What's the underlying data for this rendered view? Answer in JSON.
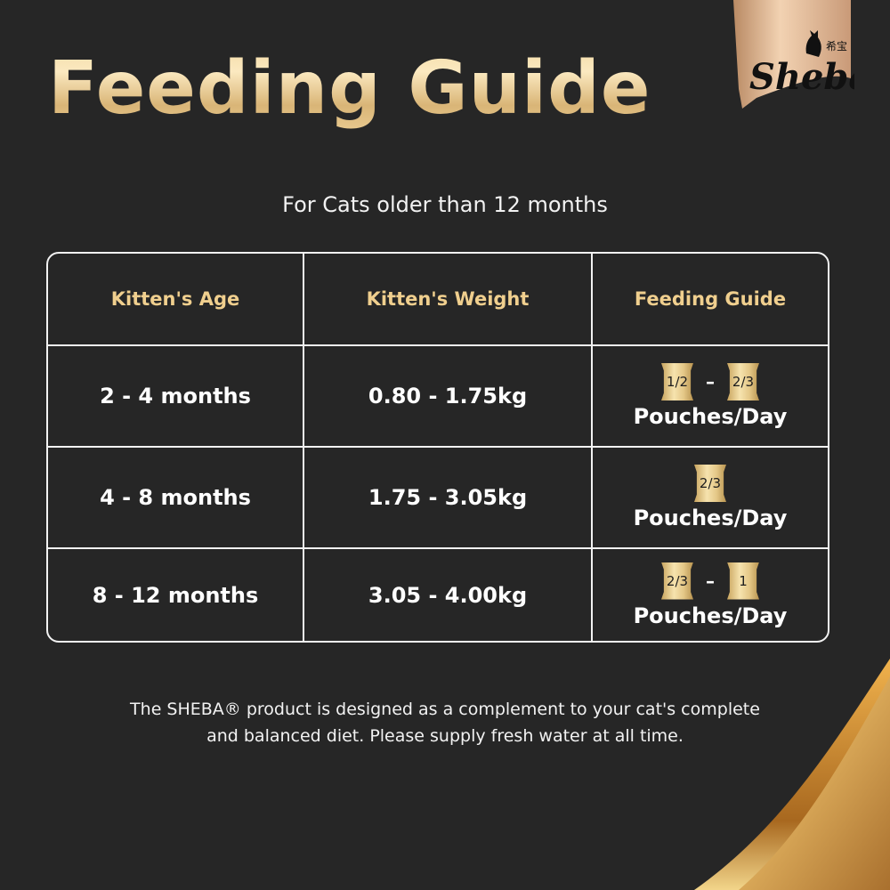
{
  "title": "Feeding Guide",
  "logo": {
    "text": "Sheba",
    "chinese": "希宝"
  },
  "subtitle": "For Cats older than 12 months",
  "table": {
    "headers": [
      "Kitten's Age",
      "Kitten's Weight",
      "Feeding Guide"
    ],
    "rows": [
      {
        "age": "2 - 4 months",
        "weight": "0.80 - 1.75kg",
        "pouches": [
          "1/2",
          "2/3"
        ],
        "unit": "Pouches/Day"
      },
      {
        "age": "4 - 8 months",
        "weight": "1.75 - 3.05kg",
        "pouches": [
          "2/3"
        ],
        "unit": "Pouches/Day"
      },
      {
        "age": "8 - 12 months",
        "weight": "3.05 - 4.00kg",
        "pouches": [
          "2/3",
          "1"
        ],
        "unit": "Pouches/Day"
      }
    ],
    "dash": "–"
  },
  "note": [
    "The SHEBA® product is designed as a complement to your cat's complete",
    "and balanced diet. Please supply fresh water at all time."
  ],
  "colors": {
    "background": "#262626",
    "gold": "#f0cf8e"
  }
}
